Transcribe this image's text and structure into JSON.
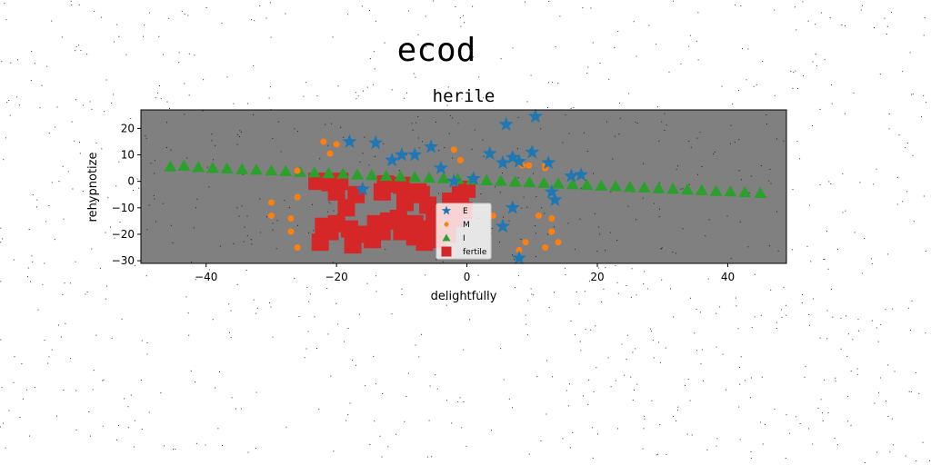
{
  "figure": {
    "suptitle": "ecod"
  },
  "chart_data": {
    "type": "scatter",
    "title": "herile",
    "xlabel": "delightfully",
    "ylabel": "rehypnotize",
    "xlim": [
      -50,
      49
    ],
    "ylim": [
      -31,
      27
    ],
    "xticks": [
      -40,
      -20,
      0,
      20,
      40
    ],
    "yticks": [
      -30,
      -20,
      -10,
      0,
      10,
      20
    ],
    "background": "#808080",
    "grid": false,
    "legend_position": "lower-center",
    "series": [
      {
        "name": "E",
        "marker": "star",
        "color": "#1f77b4",
        "points": [
          [
            -18,
            15
          ],
          [
            -14,
            14.5
          ],
          [
            -11.5,
            8
          ],
          [
            -10,
            10
          ],
          [
            -8,
            10
          ],
          [
            -5.5,
            13
          ],
          [
            -4,
            5
          ],
          [
            3.5,
            10.5
          ],
          [
            5.5,
            7
          ],
          [
            6,
            21.5
          ],
          [
            7,
            9
          ],
          [
            8,
            7.5
          ],
          [
            10.5,
            24.5
          ],
          [
            10,
            11
          ],
          [
            12.5,
            7
          ],
          [
            13.5,
            -7
          ],
          [
            13,
            -4
          ],
          [
            16,
            2
          ],
          [
            17.5,
            2.5
          ],
          [
            7,
            -10
          ],
          [
            5.5,
            -17
          ],
          [
            8,
            -29
          ],
          [
            -16,
            -3
          ],
          [
            -2,
            0
          ],
          [
            1,
            1
          ]
        ]
      },
      {
        "name": "M",
        "marker": "circle",
        "color": "#ff7f0e",
        "points": [
          [
            -22,
            15
          ],
          [
            -21,
            10.5
          ],
          [
            -20,
            14
          ],
          [
            -26,
            4
          ],
          [
            -30,
            -8
          ],
          [
            -30,
            -13
          ],
          [
            -26,
            -6
          ],
          [
            -27,
            -14
          ],
          [
            -27,
            -19
          ],
          [
            -26,
            -25
          ],
          [
            -2,
            12
          ],
          [
            -1,
            8
          ],
          [
            8,
            7
          ],
          [
            8.5,
            6
          ],
          [
            9.5,
            6
          ],
          [
            12,
            6
          ],
          [
            12,
            5
          ],
          [
            11,
            -13
          ],
          [
            13,
            -14
          ],
          [
            13,
            -19
          ],
          [
            9,
            -23
          ],
          [
            8,
            -26
          ],
          [
            12,
            -25
          ],
          [
            14,
            -23
          ],
          [
            4,
            -13
          ]
        ]
      },
      {
        "name": "I",
        "marker": "triangle",
        "color": "#2ca02c",
        "points": [
          [
            -45.5,
            5.5
          ],
          [
            -43.4,
            5.8
          ],
          [
            -41.2,
            5.3
          ],
          [
            -39,
            5
          ],
          [
            -36.8,
            4.8
          ],
          [
            -34.5,
            4.5
          ],
          [
            -32.3,
            4.3
          ],
          [
            -30,
            4
          ],
          [
            -27.8,
            3.8
          ],
          [
            -25.6,
            3.5
          ],
          [
            -23.4,
            3.3
          ],
          [
            -21.2,
            3
          ],
          [
            -19,
            2.8
          ],
          [
            -16.8,
            2.5
          ],
          [
            -14.6,
            2.3
          ],
          [
            -12.4,
            2
          ],
          [
            -10.2,
            1.8
          ],
          [
            -8,
            1.5
          ],
          [
            -5.8,
            1.3
          ],
          [
            -3.6,
            1.1
          ],
          [
            -1.4,
            0.8
          ],
          [
            0.8,
            0.6
          ],
          [
            3,
            0.3
          ],
          [
            5.2,
            0.1
          ],
          [
            7.4,
            -0.2
          ],
          [
            9.6,
            -0.4
          ],
          [
            11.8,
            -0.7
          ],
          [
            14,
            -0.9
          ],
          [
            16.2,
            -1.2
          ],
          [
            18.4,
            -1.4
          ],
          [
            20.6,
            -1.7
          ],
          [
            22.8,
            -1.9
          ],
          [
            25,
            -2.2
          ],
          [
            27.2,
            -2.4
          ],
          [
            29.4,
            -2.7
          ],
          [
            31.6,
            -2.9
          ],
          [
            33.8,
            -3.2
          ],
          [
            36,
            -3.4
          ],
          [
            38.2,
            -3.7
          ],
          [
            40.4,
            -3.9
          ],
          [
            42.6,
            -4.2
          ],
          [
            45,
            -4.5
          ]
        ]
      },
      {
        "name": "fertile",
        "marker": "square",
        "color": "#d62728",
        "points": [
          [
            -23,
            0
          ],
          [
            -21,
            -0.5
          ],
          [
            -20,
            -4
          ],
          [
            -19.5,
            0
          ],
          [
            -18.5,
            -10
          ],
          [
            -17,
            -5
          ],
          [
            -22,
            -17
          ],
          [
            -21,
            -19
          ],
          [
            -22.5,
            -23
          ],
          [
            -20,
            -16
          ],
          [
            -18,
            -18
          ],
          [
            -17.5,
            -24
          ],
          [
            -15.5,
            -20
          ],
          [
            -14,
            -16
          ],
          [
            -14.5,
            -22
          ],
          [
            -13,
            -19
          ],
          [
            -12,
            -15
          ],
          [
            -10,
            -19
          ],
          [
            -13,
            -4
          ],
          [
            -12.5,
            -1
          ],
          [
            -10,
            -1.5
          ],
          [
            -9.5,
            -8
          ],
          [
            -10.5,
            -14
          ],
          [
            -8,
            -16
          ],
          [
            -7.5,
            -4
          ],
          [
            -7,
            -5
          ],
          [
            -6,
            -9
          ],
          [
            -5,
            -13
          ],
          [
            -4,
            -12
          ],
          [
            -6.5,
            -23
          ],
          [
            -5.5,
            -18
          ],
          [
            -3,
            -20
          ],
          [
            -2.5,
            -7.5
          ],
          [
            -1.5,
            -10
          ],
          [
            -1,
            -5
          ],
          [
            -0.5,
            -11
          ],
          [
            0,
            -3
          ],
          [
            -2,
            -14
          ],
          [
            -8,
            -21
          ],
          [
            -4.5,
            -22
          ]
        ]
      }
    ]
  }
}
